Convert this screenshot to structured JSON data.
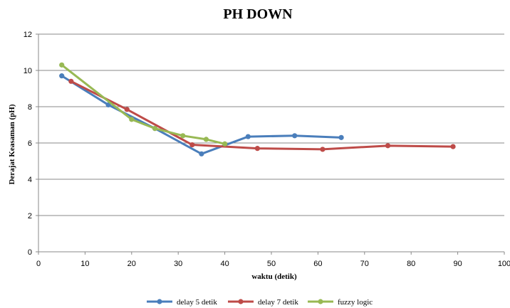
{
  "chart_data": {
    "type": "line",
    "title": "PH DOWN",
    "xlabel": "waktu (detik)",
    "ylabel": "Derajat Keasaman (pH)",
    "xlim": [
      0,
      100
    ],
    "ylim": [
      0,
      12
    ],
    "x_ticks": [
      0,
      10,
      20,
      30,
      40,
      50,
      60,
      70,
      80,
      90,
      100
    ],
    "y_ticks": [
      0,
      2,
      4,
      6,
      8,
      10,
      12
    ],
    "grid": "horizontal",
    "legend": "bottom",
    "series": [
      {
        "name": "delay 5 detik",
        "color": "#4a7ebb",
        "points": [
          [
            5,
            9.7
          ],
          [
            15,
            8.1
          ],
          [
            25,
            6.8
          ],
          [
            35,
            5.4
          ],
          [
            45,
            6.35
          ],
          [
            55,
            6.4
          ],
          [
            65,
            6.3
          ]
        ]
      },
      {
        "name": "delay 7 detik",
        "color": "#be4b48",
        "points": [
          [
            7,
            9.4
          ],
          [
            19,
            7.85
          ],
          [
            33,
            5.9
          ],
          [
            47,
            5.7
          ],
          [
            61,
            5.65
          ],
          [
            75,
            5.85
          ],
          [
            89,
            5.8
          ]
        ]
      },
      {
        "name": "fuzzy logic",
        "color": "#98b954",
        "points": [
          [
            5,
            10.3
          ],
          [
            20,
            7.3
          ],
          [
            25,
            6.8
          ],
          [
            31,
            6.4
          ],
          [
            36,
            6.2
          ],
          [
            40,
            5.95
          ]
        ]
      }
    ]
  }
}
